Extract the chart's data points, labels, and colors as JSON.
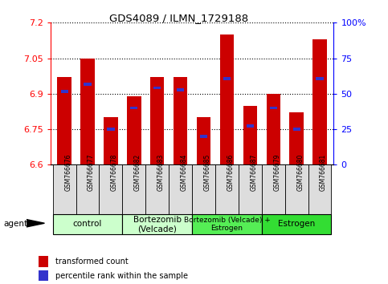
{
  "title": "GDS4089 / ILMN_1729188",
  "samples": [
    "GSM766676",
    "GSM766677",
    "GSM766678",
    "GSM766682",
    "GSM766683",
    "GSM766684",
    "GSM766685",
    "GSM766686",
    "GSM766687",
    "GSM766679",
    "GSM766680",
    "GSM766681"
  ],
  "bar_tops": [
    6.97,
    7.05,
    6.8,
    6.89,
    6.97,
    6.97,
    6.8,
    7.15,
    6.85,
    6.9,
    6.82,
    7.13
  ],
  "blue_positions": [
    6.91,
    6.94,
    6.75,
    6.84,
    6.925,
    6.915,
    6.72,
    6.965,
    6.765,
    6.84,
    6.75,
    6.965
  ],
  "ylim": [
    6.6,
    7.2
  ],
  "yticks_left": [
    6.6,
    6.75,
    6.9,
    7.05,
    7.2
  ],
  "ytick_labels_left": [
    "6.6",
    "6.75",
    "6.9",
    "7.05",
    "7.2"
  ],
  "yticks_right": [
    0,
    25,
    50,
    75,
    100
  ],
  "ytick_labels_right": [
    "0",
    "25",
    "50",
    "75",
    "100%"
  ],
  "bar_color": "#cc0000",
  "blue_color": "#3333cc",
  "bar_bottom": 6.6,
  "bar_width": 0.6,
  "groups": [
    {
      "label": "control",
      "start": 0,
      "end": 2,
      "color": "#ccffcc"
    },
    {
      "label": "Bortezomib\n(Velcade)",
      "start": 3,
      "end": 5,
      "color": "#ccffcc"
    },
    {
      "label": "Bortezomib (Velcade) +\nEstrogen",
      "start": 6,
      "end": 8,
      "color": "#55ee55"
    },
    {
      "label": "Estrogen",
      "start": 9,
      "end": 11,
      "color": "#33dd33"
    }
  ],
  "agent_label": "agent",
  "legend_red": "transformed count",
  "legend_blue": "percentile rank within the sample",
  "background_color": "#ffffff"
}
